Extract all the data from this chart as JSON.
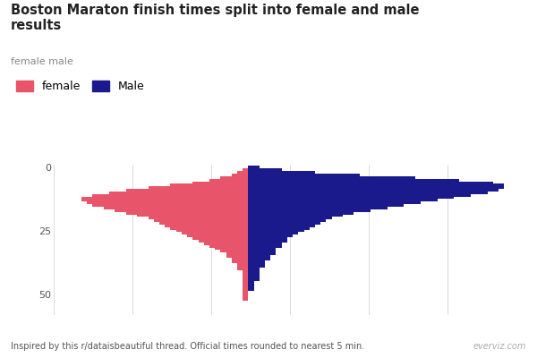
{
  "title": "Boston Maraton finish times split into female and male\nresults",
  "subtitle": "female male",
  "footer": "Inspired by this r/dataisbeautiful thread. Official times rounded to nearest 5 min.",
  "watermark": "everviz.com",
  "female_color": "#e8546a",
  "male_color": "#1a1a8c",
  "background_color": "#ffffff",
  "legend_female": "female",
  "legend_male": "Male",
  "ylabel_ticks": [
    0,
    25,
    50
  ],
  "female_counts": [
    0,
    1,
    2,
    3,
    5,
    7,
    10,
    14,
    18,
    22,
    25,
    28,
    30,
    30,
    29,
    28,
    26,
    24,
    22,
    20,
    18,
    17,
    16,
    15,
    14,
    13,
    12,
    11,
    10,
    9,
    8,
    7,
    6,
    5,
    4,
    4,
    3,
    3,
    2,
    2,
    2,
    1,
    1,
    1,
    1,
    1,
    1,
    1,
    1,
    1,
    1,
    1,
    1,
    0,
    0
  ],
  "male_counts": [
    2,
    6,
    12,
    20,
    30,
    38,
    44,
    46,
    46,
    45,
    43,
    40,
    37,
    34,
    31,
    28,
    25,
    22,
    19,
    17,
    15,
    14,
    13,
    12,
    11,
    10,
    9,
    8,
    7,
    7,
    6,
    6,
    5,
    5,
    5,
    4,
    4,
    3,
    3,
    3,
    2,
    2,
    2,
    2,
    2,
    1,
    1,
    1,
    1,
    0,
    0,
    0,
    0,
    0,
    0
  ],
  "n_bins": 55,
  "xlim_left": -35,
  "xlim_right": 50,
  "ylim_top": -1,
  "ylim_bottom": 58
}
